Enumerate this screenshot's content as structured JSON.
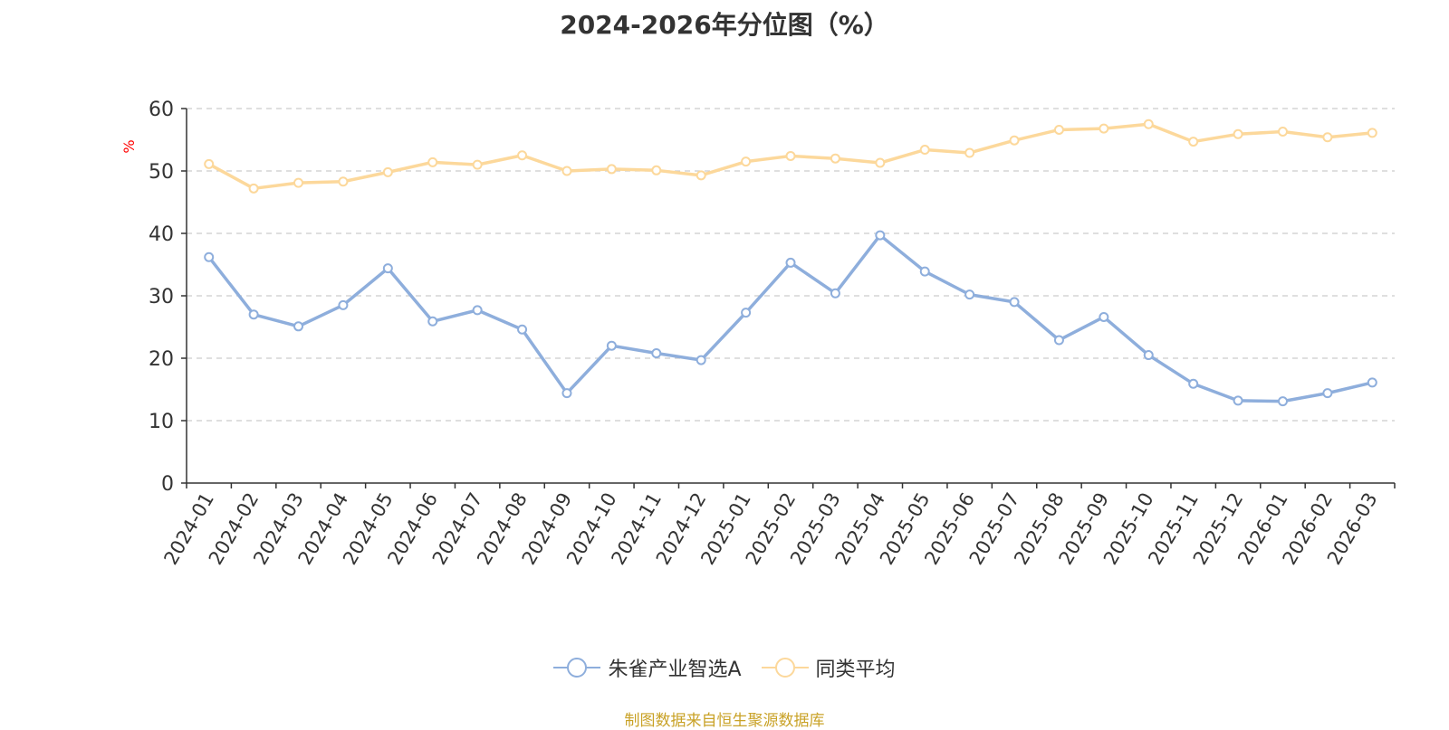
{
  "title": "2024-2026年分位图（%）",
  "source": "制图数据来自恒生聚源数据库",
  "chart_data": {
    "type": "line",
    "title": "2024-2026年分位图（%）",
    "ylabel": "%",
    "xlabel": "",
    "ylim": [
      0,
      60
    ],
    "yticks": [
      0,
      10,
      20,
      30,
      40,
      50,
      60
    ],
    "grid": "horizontal-dashed",
    "legend_position": "bottom-center",
    "categories": [
      "2024-01",
      "2024-02",
      "2024-03",
      "2024-04",
      "2024-05",
      "2024-06",
      "2024-07",
      "2024-08",
      "2024-09",
      "2024-10",
      "2024-11",
      "2024-12",
      "2025-01",
      "2025-02",
      "2025-03",
      "2025-04",
      "2025-05",
      "2025-06",
      "2025-07",
      "2025-08",
      "2025-09",
      "2025-10",
      "2025-11",
      "2025-12",
      "2026-01",
      "2026-02",
      "2026-03"
    ],
    "series": [
      {
        "name": "朱雀产业智选A",
        "color": "#8eaedc",
        "values": [
          36.2,
          27.0,
          25.1,
          28.5,
          34.4,
          25.9,
          27.7,
          24.6,
          14.4,
          22.0,
          20.8,
          19.7,
          27.3,
          35.3,
          30.4,
          39.7,
          33.9,
          30.2,
          29.0,
          22.9,
          26.6,
          20.5,
          15.9,
          13.2,
          13.1,
          14.4,
          16.1
        ]
      },
      {
        "name": "同类平均",
        "color": "#fcd89b",
        "values": [
          51.1,
          47.2,
          48.1,
          48.3,
          49.8,
          51.4,
          51.0,
          52.5,
          50.0,
          50.3,
          50.1,
          49.3,
          51.5,
          52.4,
          52.0,
          51.3,
          53.4,
          52.9,
          54.9,
          56.6,
          56.8,
          57.5,
          54.7,
          55.9,
          56.3,
          55.4,
          56.1
        ]
      }
    ]
  }
}
